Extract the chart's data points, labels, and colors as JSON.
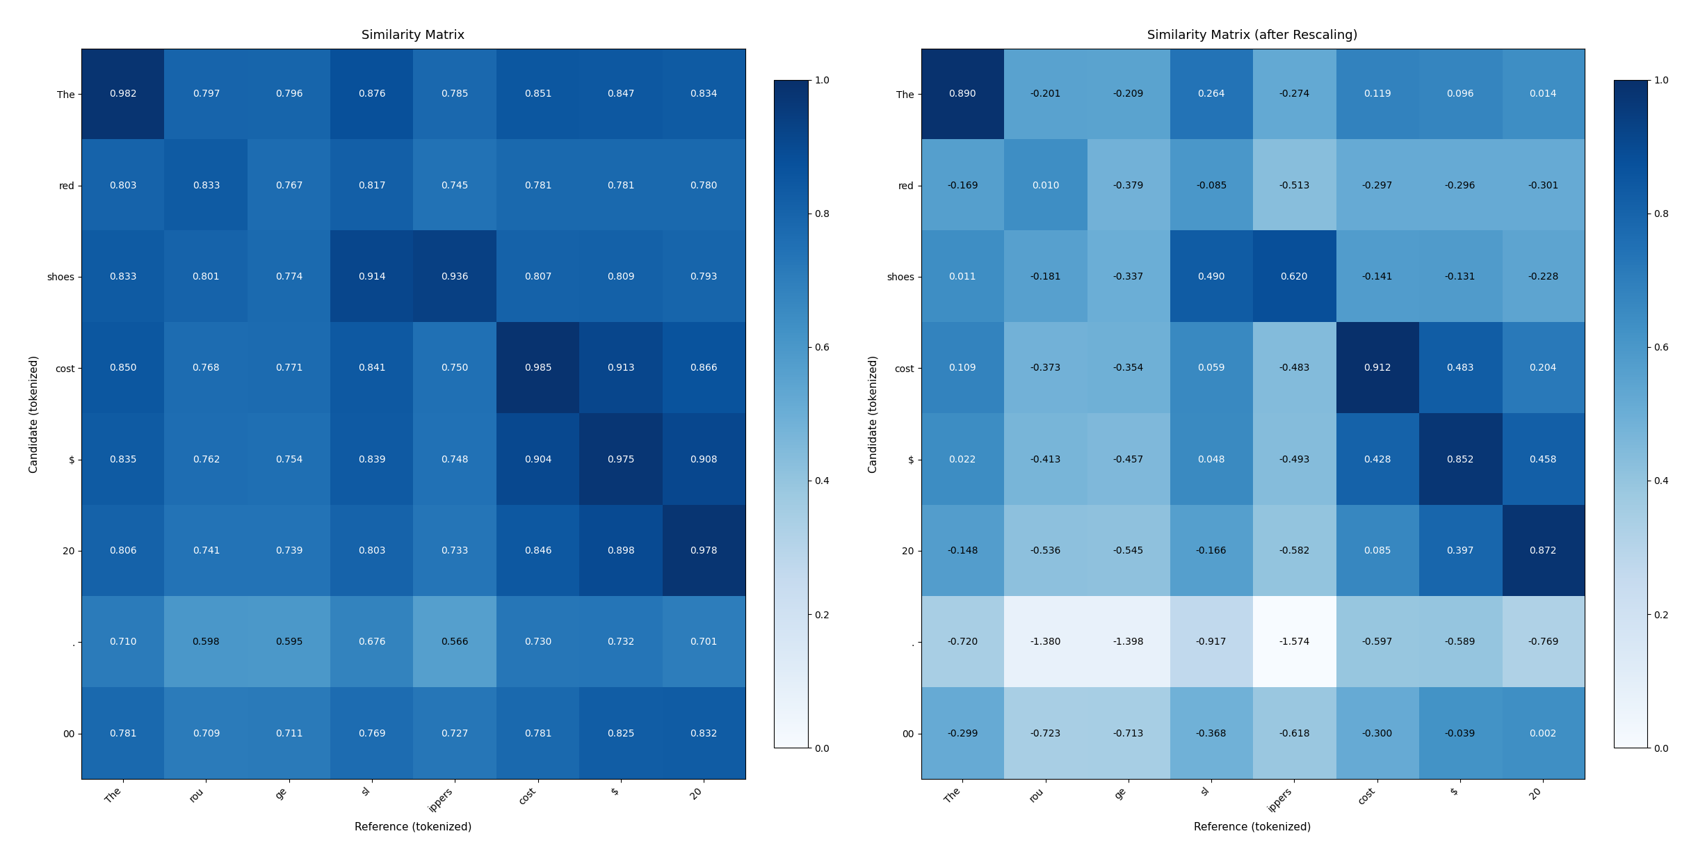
{
  "matrix1": [
    [
      0.982,
      0.797,
      0.796,
      0.876,
      0.785,
      0.851,
      0.847,
      0.834
    ],
    [
      0.803,
      0.833,
      0.767,
      0.817,
      0.745,
      0.781,
      0.781,
      0.78
    ],
    [
      0.833,
      0.801,
      0.774,
      0.914,
      0.936,
      0.807,
      0.809,
      0.793
    ],
    [
      0.85,
      0.768,
      0.771,
      0.841,
      0.75,
      0.985,
      0.913,
      0.866
    ],
    [
      0.835,
      0.762,
      0.754,
      0.839,
      0.748,
      0.904,
      0.975,
      0.908
    ],
    [
      0.806,
      0.741,
      0.739,
      0.803,
      0.733,
      0.846,
      0.898,
      0.978
    ],
    [
      0.71,
      0.598,
      0.595,
      0.676,
      0.566,
      0.73,
      0.732,
      0.701
    ],
    [
      0.781,
      0.709,
      0.711,
      0.769,
      0.727,
      0.781,
      0.825,
      0.832
    ]
  ],
  "matrix2": [
    [
      0.89,
      -0.201,
      -0.209,
      0.264,
      -0.274,
      0.119,
      0.096,
      0.014
    ],
    [
      -0.169,
      0.01,
      -0.379,
      -0.085,
      -0.513,
      -0.297,
      -0.296,
      -0.301
    ],
    [
      0.011,
      -0.181,
      -0.337,
      0.49,
      0.62,
      -0.141,
      -0.131,
      -0.228
    ],
    [
      0.109,
      -0.373,
      -0.354,
      0.059,
      -0.483,
      0.912,
      0.483,
      0.204
    ],
    [
      0.022,
      -0.413,
      -0.457,
      0.048,
      -0.493,
      0.428,
      0.852,
      0.458
    ],
    [
      -0.148,
      -0.536,
      -0.545,
      -0.166,
      -0.582,
      0.085,
      0.397,
      0.872
    ],
    [
      -0.72,
      -1.38,
      -1.398,
      -0.917,
      -1.574,
      -0.597,
      -0.589,
      -0.769
    ],
    [
      -0.299,
      -0.723,
      -0.713,
      -0.368,
      -0.618,
      -0.3,
      -0.039,
      0.002
    ]
  ],
  "row_labels": [
    "The",
    "red",
    "shoes",
    "cost",
    "$",
    "20",
    ".",
    "00"
  ],
  "col_labels": [
    "The",
    "rou",
    "ge",
    "sl",
    "ippers",
    "cost",
    "$",
    "20"
  ],
  "title1": "Similarity Matrix",
  "title2": "Similarity Matrix (after Rescaling)",
  "xlabel": "Reference (tokenized)",
  "ylabel": "Candidate (tokenized)",
  "cmap": "Blues",
  "vmin1": 0.0,
  "vmax1": 1.0,
  "vmin2": 0.0,
  "vmax2": 1.0,
  "colorbar_ticks": [
    0.0,
    0.2,
    0.4,
    0.6,
    0.8,
    1.0
  ],
  "fontsize_annot": 10,
  "fontsize_label": 11,
  "fontsize_title": 13,
  "fontsize_tick": 10
}
